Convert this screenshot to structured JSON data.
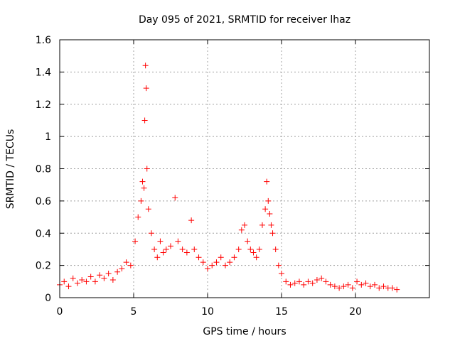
{
  "chart_data": {
    "type": "scatter",
    "title": "Day 095 of 2021, SRMTID for receiver lhaz",
    "xlabel": "GPS time / hours",
    "ylabel": "SRMTID / TECUs",
    "xlim": [
      0,
      25.0
    ],
    "ylim": [
      0,
      1.6
    ],
    "x_ticks": [
      0,
      5,
      10,
      15,
      20
    ],
    "y_ticks": [
      0,
      0.2,
      0.4,
      0.6,
      0.8,
      1,
      1.2,
      1.4,
      1.6
    ],
    "x_tick_labels": [
      "0",
      "5",
      "10",
      "15",
      "20"
    ],
    "y_tick_labels": [
      "0",
      "0.2",
      "0.4",
      "0.6",
      "0.8",
      "1",
      "1.2",
      "1.4",
      "1.6"
    ],
    "grid": true,
    "marker": "plus",
    "series": [
      {
        "name": "SRMTID",
        "color": "#ff0000",
        "x": [
          0.0,
          0.3,
          0.6,
          0.9,
          1.2,
          1.5,
          1.8,
          2.1,
          2.4,
          2.7,
          3.0,
          3.3,
          3.6,
          3.9,
          4.2,
          4.5,
          4.8,
          5.1,
          5.3,
          5.5,
          5.6,
          5.7,
          5.75,
          5.8,
          5.85,
          5.9,
          6.0,
          6.2,
          6.4,
          6.6,
          6.8,
          7.0,
          7.2,
          7.5,
          7.8,
          8.0,
          8.3,
          8.6,
          8.9,
          9.1,
          9.4,
          9.7,
          10.0,
          10.3,
          10.6,
          10.9,
          11.2,
          11.5,
          11.8,
          12.1,
          12.3,
          12.5,
          12.7,
          12.9,
          13.1,
          13.3,
          13.5,
          13.7,
          13.9,
          14.0,
          14.1,
          14.2,
          14.3,
          14.4,
          14.6,
          14.8,
          15.0,
          15.3,
          15.6,
          15.9,
          16.2,
          16.5,
          16.8,
          17.1,
          17.4,
          17.7,
          18.0,
          18.3,
          18.6,
          18.9,
          19.2,
          19.5,
          19.8,
          20.1,
          20.4,
          20.7,
          21.0,
          21.3,
          21.6,
          21.9,
          22.2,
          22.5,
          22.8
        ],
        "y": [
          0.08,
          0.1,
          0.07,
          0.12,
          0.09,
          0.11,
          0.1,
          0.13,
          0.1,
          0.14,
          0.12,
          0.15,
          0.11,
          0.16,
          0.18,
          0.22,
          0.2,
          0.35,
          0.5,
          0.6,
          0.72,
          0.68,
          1.1,
          1.44,
          1.3,
          0.8,
          0.55,
          0.4,
          0.3,
          0.25,
          0.35,
          0.28,
          0.3,
          0.32,
          0.62,
          0.35,
          0.3,
          0.28,
          0.48,
          0.3,
          0.25,
          0.22,
          0.18,
          0.2,
          0.22,
          0.25,
          0.2,
          0.22,
          0.25,
          0.3,
          0.42,
          0.45,
          0.35,
          0.3,
          0.28,
          0.25,
          0.3,
          0.45,
          0.55,
          0.72,
          0.6,
          0.52,
          0.45,
          0.4,
          0.3,
          0.2,
          0.15,
          0.1,
          0.08,
          0.09,
          0.1,
          0.08,
          0.1,
          0.09,
          0.11,
          0.12,
          0.1,
          0.08,
          0.07,
          0.06,
          0.07,
          0.08,
          0.06,
          0.1,
          0.08,
          0.09,
          0.07,
          0.08,
          0.06,
          0.07,
          0.06,
          0.06,
          0.05
        ]
      }
    ]
  }
}
